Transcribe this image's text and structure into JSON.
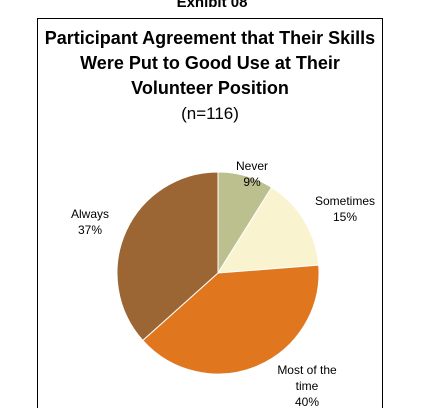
{
  "exhibit_label": "Exhibit 08",
  "chart_data": {
    "type": "pie",
    "title": "Participant Agreement that Their Skills Were Put to Good Use at Their Volunteer Position",
    "subtitle": "(n=116)",
    "slices": [
      {
        "label": "Never",
        "value": 9,
        "display": "9%",
        "color": "#bcc08f"
      },
      {
        "label": "Sometimes",
        "value": 15,
        "display": "15%",
        "color": "#f9f3d0"
      },
      {
        "label": "Most of the time",
        "value": 40,
        "display": "40%",
        "color": "#e0761e"
      },
      {
        "label": "Always",
        "value": 37,
        "display": "37%",
        "color": "#9b6534"
      }
    ]
  }
}
